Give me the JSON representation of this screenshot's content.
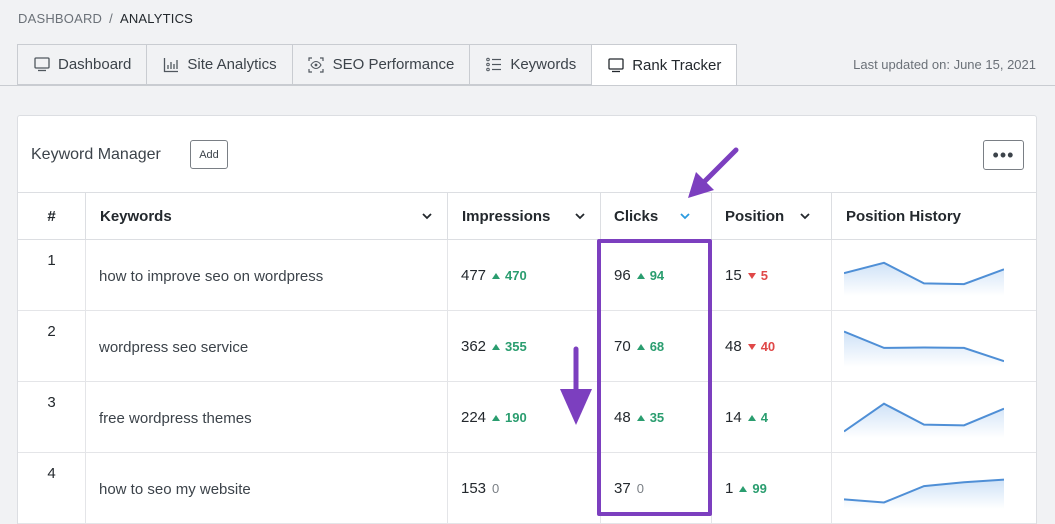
{
  "breadcrumb": {
    "root": "DASHBOARD",
    "separator": "/",
    "current": "ANALYTICS"
  },
  "tabs": [
    {
      "label": "Dashboard",
      "icon": "monitor-icon"
    },
    {
      "label": "Site Analytics",
      "icon": "bar-chart-icon"
    },
    {
      "label": "SEO Performance",
      "icon": "eye-scan-icon"
    },
    {
      "label": "Keywords",
      "icon": "list-icon"
    },
    {
      "label": "Rank Tracker",
      "icon": "monitor-icon",
      "active": true
    }
  ],
  "last_updated": "Last updated on: June 15, 2021",
  "card": {
    "title": "Keyword Manager",
    "add_label": "Add",
    "more_label": "•••"
  },
  "columns": {
    "index": "#",
    "keywords": "Keywords",
    "impressions": "Impressions",
    "clicks": "Clicks",
    "position": "Position",
    "history": "Position History"
  },
  "rows": [
    {
      "index": "1",
      "keyword": "how to improve seo on wordpress",
      "impressions": "477",
      "impressions_delta": "470",
      "impressions_dir": "up",
      "clicks": "96",
      "clicks_delta": "94",
      "clicks_dir": "up",
      "position": "15",
      "position_delta": "5",
      "position_dir": "down",
      "history": [
        0.55,
        0.82,
        0.28,
        0.26,
        0.65
      ]
    },
    {
      "index": "2",
      "keyword": "wordpress seo service",
      "impressions": "362",
      "impressions_delta": "355",
      "impressions_dir": "up",
      "clicks": "70",
      "clicks_delta": "68",
      "clicks_dir": "up",
      "position": "48",
      "position_delta": "40",
      "position_dir": "down",
      "history": [
        0.88,
        0.45,
        0.46,
        0.45,
        0.1
      ]
    },
    {
      "index": "3",
      "keyword": "free wordpress themes",
      "impressions": "224",
      "impressions_delta": "190",
      "impressions_dir": "up",
      "clicks": "48",
      "clicks_delta": "35",
      "clicks_dir": "up",
      "position": "14",
      "position_delta": "4",
      "position_dir": "up",
      "history": [
        0.12,
        0.85,
        0.3,
        0.28,
        0.72
      ]
    },
    {
      "index": "4",
      "keyword": "how to seo my website",
      "impressions": "153",
      "impressions_delta": "0",
      "impressions_dir": "zero",
      "clicks": "37",
      "clicks_delta": "0",
      "clicks_dir": "zero",
      "position": "1",
      "position_delta": "99",
      "position_dir": "up",
      "history": [
        0.2,
        0.12,
        0.55,
        0.65,
        0.72
      ]
    }
  ],
  "colors": {
    "accent": "#7c3fbf",
    "up": "#2a9d6f",
    "down": "#e04848",
    "spark": "#4f8fd6"
  }
}
